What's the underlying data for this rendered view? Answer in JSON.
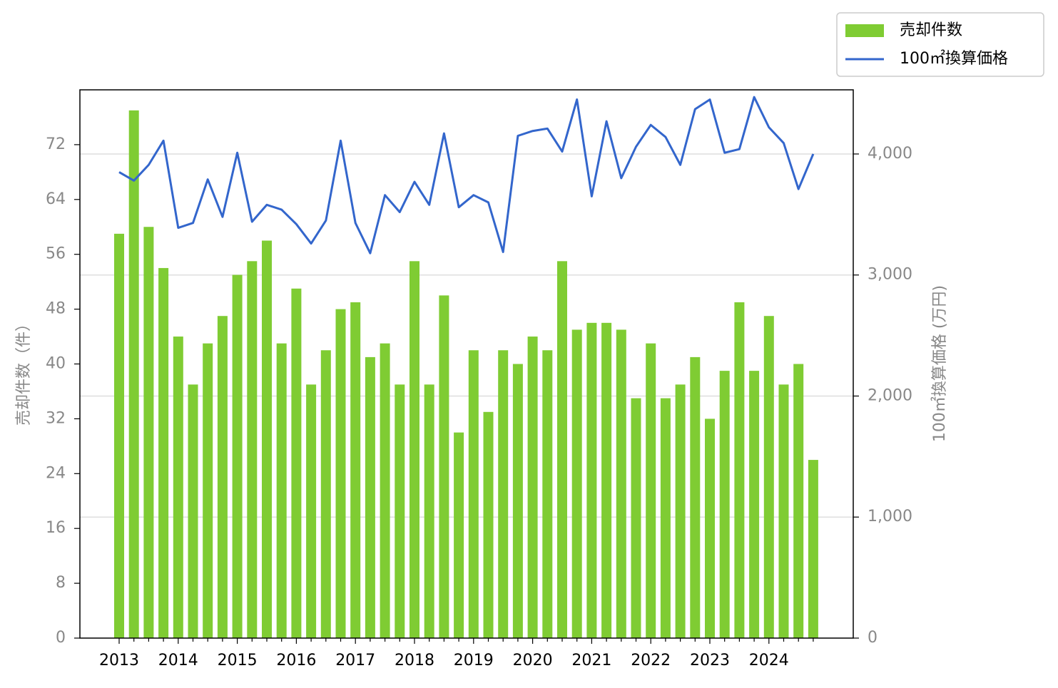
{
  "chart_data": {
    "type": "bar",
    "y_label": "売却件数（件）",
    "y2_label": "100㎡換算価格 (万円)",
    "categories": [
      "2013",
      null,
      null,
      null,
      "2014",
      null,
      null,
      null,
      "2015",
      null,
      null,
      null,
      "2016",
      null,
      null,
      null,
      "2017",
      null,
      null,
      null,
      "2018",
      null,
      null,
      null,
      "2019",
      null,
      null,
      null,
      "2020",
      null,
      null,
      null,
      "2021",
      null,
      null,
      null,
      "2022",
      null,
      null,
      null,
      "2023",
      null,
      null,
      null,
      "2024",
      null,
      null,
      null
    ],
    "series": [
      {
        "name": "売却件数",
        "type": "bar",
        "color": "#7fcc33",
        "values": [
          59,
          77,
          60,
          54,
          44,
          37,
          43,
          47,
          53,
          55,
          58,
          43,
          51,
          37,
          42,
          48,
          49,
          41,
          43,
          37,
          55,
          37,
          50,
          30,
          42,
          33,
          42,
          40,
          44,
          42,
          55,
          45,
          46,
          46,
          45,
          35,
          43,
          35,
          37,
          41,
          32,
          39,
          49,
          39,
          47,
          37,
          40,
          26
        ]
      },
      {
        "name": "100㎡換算価格",
        "type": "line",
        "axis": "y2",
        "color": "#3366cc",
        "values": [
          3850,
          3780,
          3910,
          4110,
          3390,
          3430,
          3790,
          3480,
          4010,
          3440,
          3580,
          3540,
          3420,
          3260,
          3450,
          4110,
          3430,
          3180,
          3660,
          3520,
          3770,
          3580,
          4170,
          3560,
          3660,
          3600,
          3190,
          4150,
          4190,
          4210,
          4020,
          4450,
          3650,
          4270,
          3800,
          4060,
          4240,
          4140,
          3910,
          4370,
          4450,
          4010,
          4040,
          4470,
          4220,
          4090,
          3710,
          4000
        ]
      }
    ],
    "ylim": [
      0,
      80
    ],
    "yticks": [
      0,
      8,
      16,
      24,
      32,
      40,
      48,
      56,
      64,
      72
    ],
    "y2lim": [
      0,
      4530
    ],
    "y2ticks": [
      0,
      {
        "value": 1000,
        "label": "1,000"
      },
      {
        "value": 2000,
        "label": "2,000"
      },
      {
        "value": 3000,
        "label": "3,000"
      },
      {
        "value": 4000,
        "label": "4,000"
      }
    ],
    "grid": true,
    "legend": "upper right"
  }
}
